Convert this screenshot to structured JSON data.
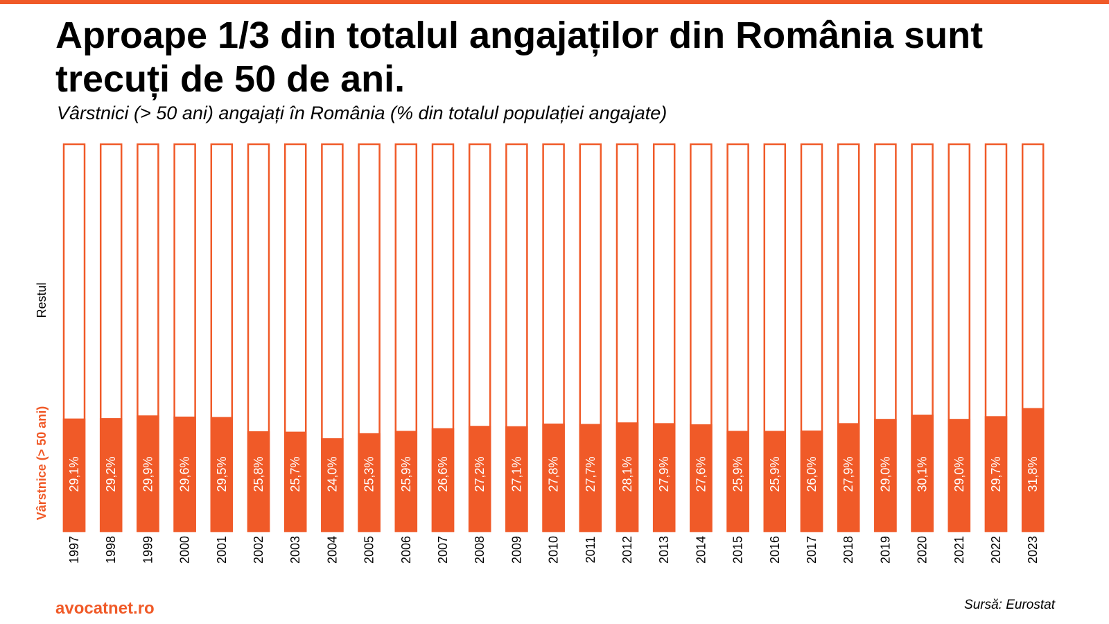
{
  "title": "Aproape 1/3 din totalul angajaților din România sunt trecuți de 50 de ani.",
  "subtitle": "Vârstnici (> 50 ani) angajați în România (% din totalul populației angajate)",
  "footer": {
    "brand": "avocatnet.ro",
    "source": "Sursă: Eurostat"
  },
  "colors": {
    "accent": "#f05a28",
    "rest": "#ffffff",
    "text": "#000000"
  },
  "chart_data": {
    "type": "bar",
    "stacked": true,
    "orientation": "vertical",
    "ylim": [
      0,
      100
    ],
    "categories": [
      "1997",
      "1998",
      "1999",
      "2000",
      "2001",
      "2002",
      "2003",
      "2004",
      "2005",
      "2006",
      "2007",
      "2008",
      "2009",
      "2010",
      "2011",
      "2012",
      "2013",
      "2014",
      "2015",
      "2016",
      "2017",
      "2018",
      "2019",
      "2020",
      "2021",
      "2022",
      "2023"
    ],
    "series": [
      {
        "name": "Vârstnice (> 50 ani)",
        "color": "#f05a28",
        "values": [
          29.1,
          29.2,
          29.9,
          29.6,
          29.5,
          25.8,
          25.7,
          24.0,
          25.3,
          25.9,
          26.6,
          27.2,
          27.1,
          27.8,
          27.7,
          28.1,
          27.9,
          27.6,
          25.9,
          25.9,
          26.0,
          27.9,
          29.0,
          30.1,
          29.0,
          29.7,
          31.8
        ],
        "labels": [
          "29,1%",
          "29,2%",
          "29,9%",
          "29,6%",
          "29,5%",
          "25,8%",
          "25,7%",
          "24,0%",
          "25,3%",
          "25,9%",
          "26,6%",
          "27,2%",
          "27,1%",
          "27,8%",
          "27,7%",
          "28,1%",
          "27,9%",
          "27,6%",
          "25,9%",
          "25,9%",
          "26,0%",
          "27,9%",
          "29,0%",
          "30,1%",
          "29,0%",
          "29,7%",
          "31,8%"
        ]
      },
      {
        "name": "Restul",
        "color": "#ffffff",
        "values": [
          70.9,
          70.8,
          70.1,
          70.4,
          70.5,
          74.2,
          74.3,
          76.0,
          74.7,
          74.1,
          73.4,
          72.8,
          72.9,
          72.2,
          72.3,
          71.9,
          72.1,
          72.4,
          74.1,
          74.1,
          74.0,
          72.1,
          71.0,
          69.9,
          71.0,
          70.3,
          68.2
        ]
      }
    ],
    "legend": {
      "placement": "left",
      "orientation": "vertical-text"
    }
  }
}
